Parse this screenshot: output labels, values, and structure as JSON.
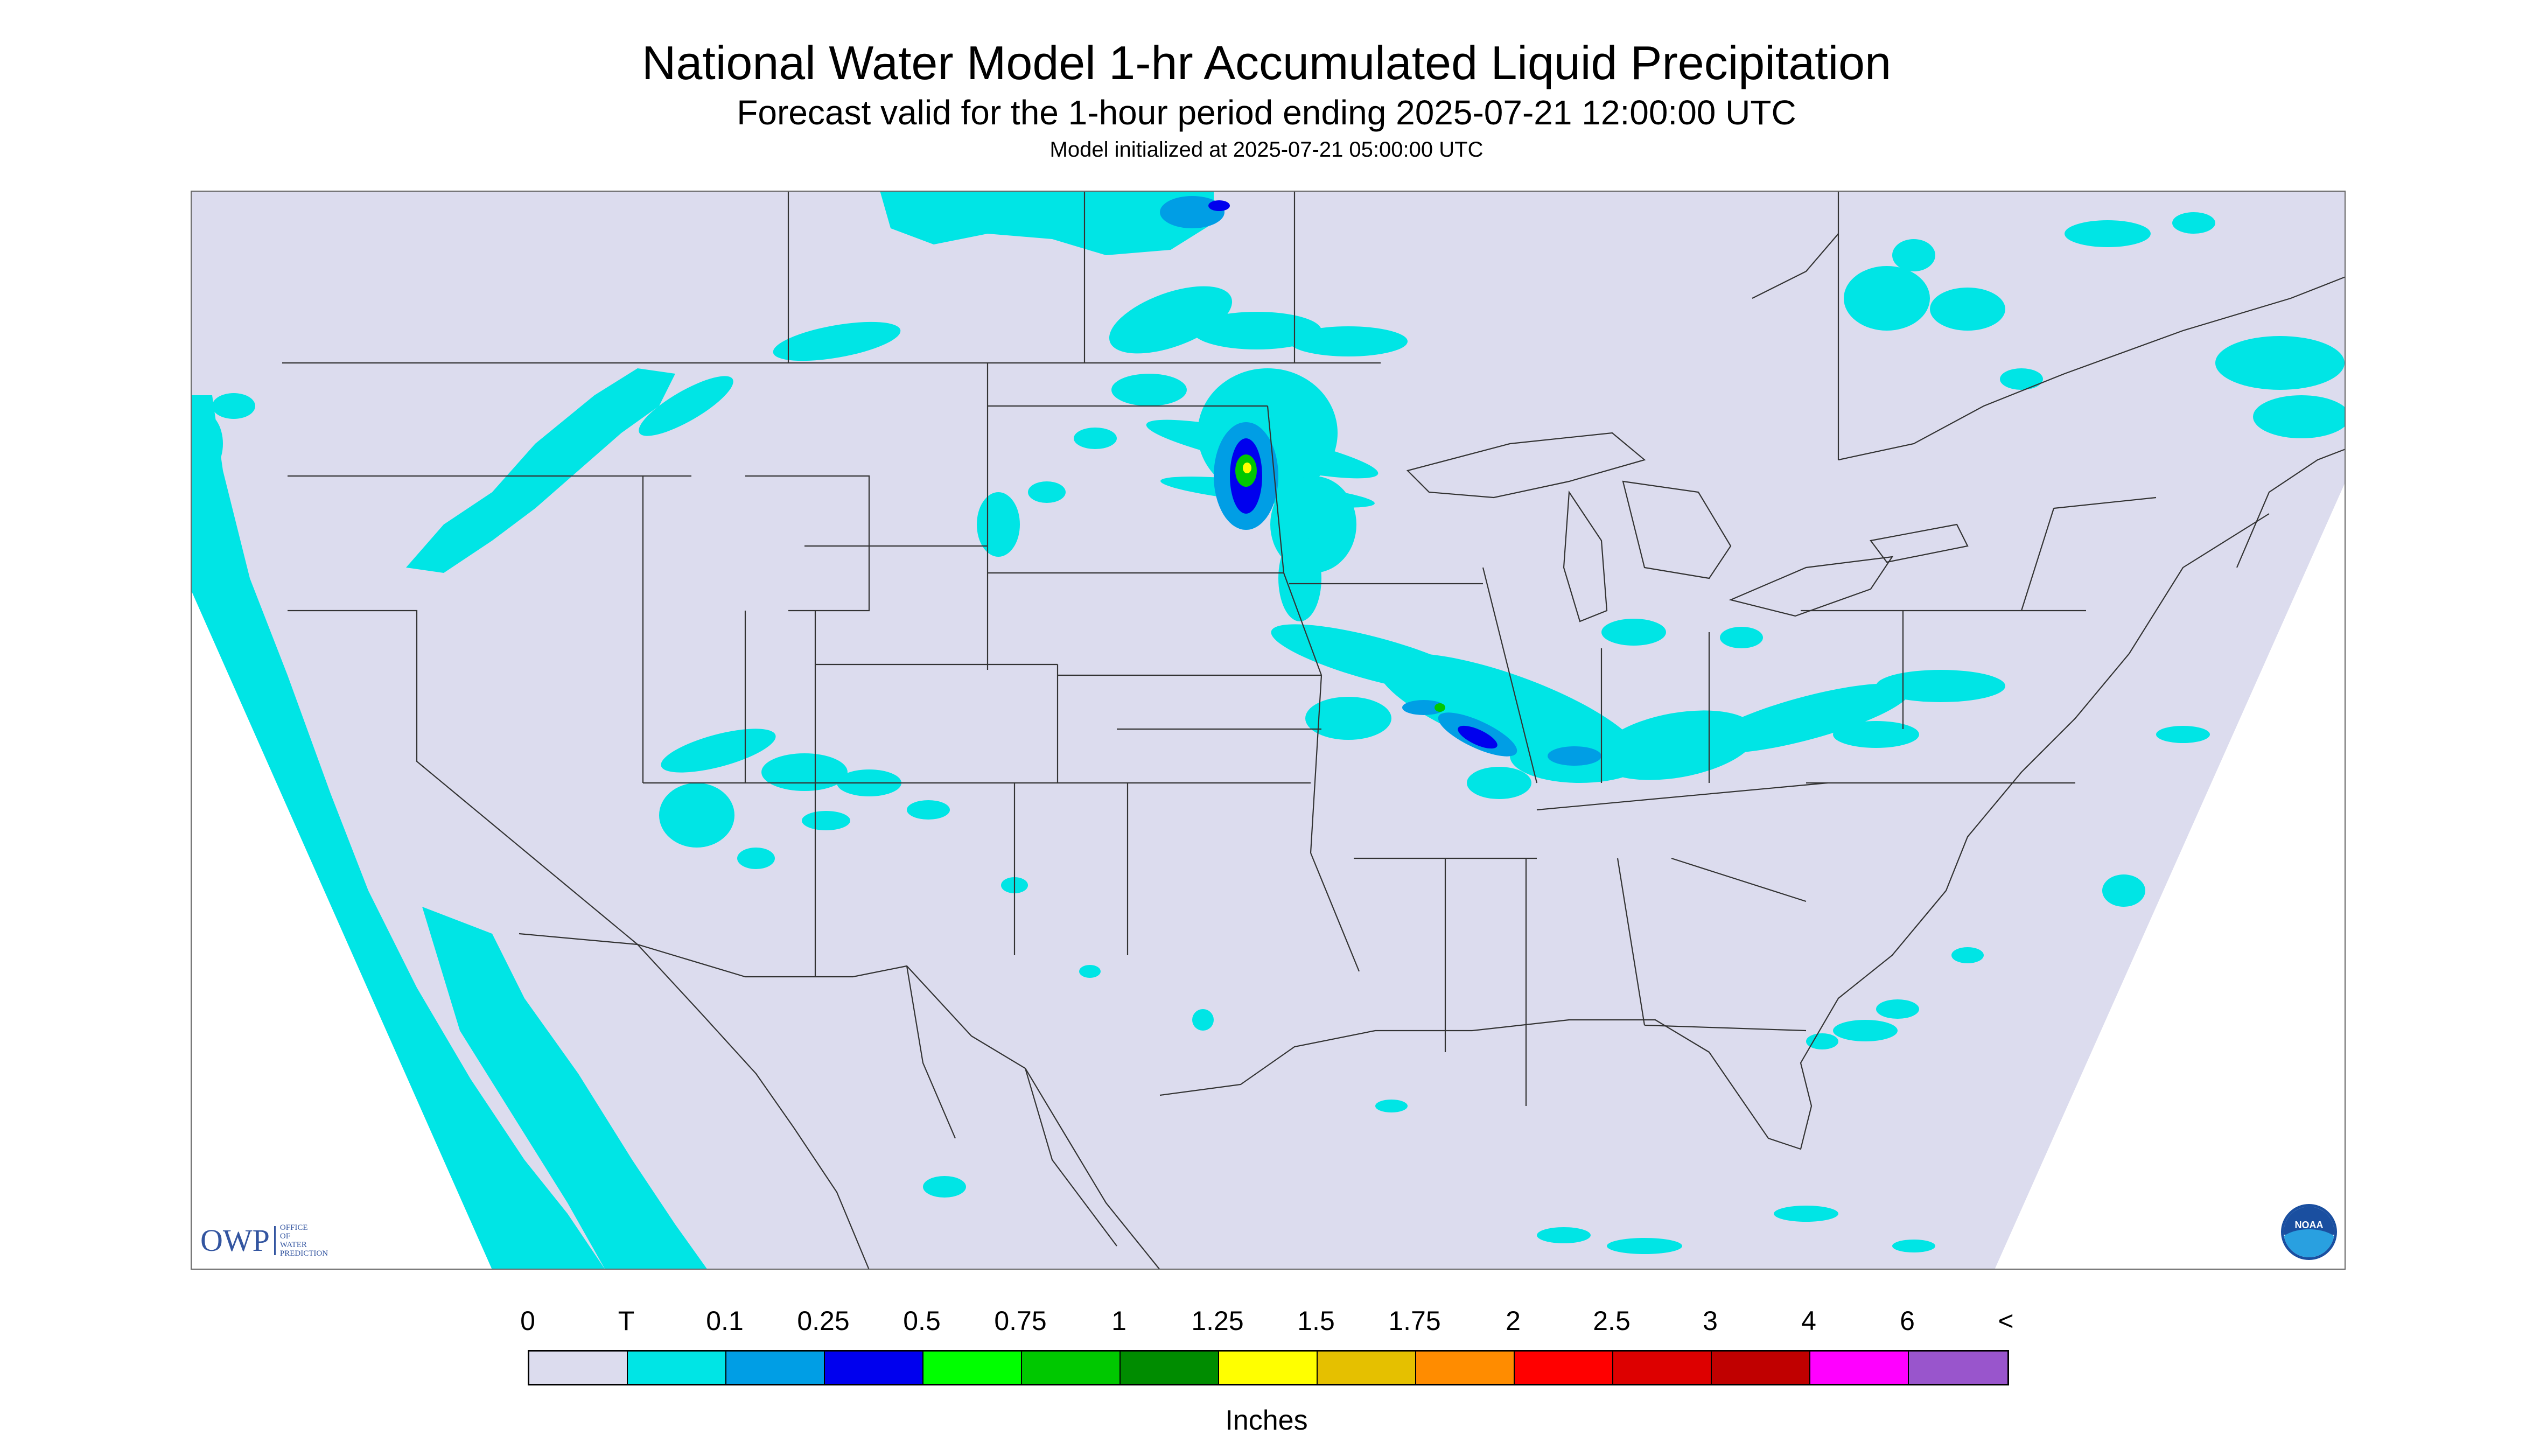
{
  "header": {
    "title": "National Water Model 1-hr Accumulated Liquid Precipitation",
    "subtitle": "Forecast valid for the 1-hour period ending 2025-07-21 12:00:00 UTC",
    "init_line": "Model initialized at 2025-07-21 05:00:00 UTC"
  },
  "logos": {
    "owp_text": "OWP",
    "owp_small": "OFFICE OF WATER PREDICTION",
    "noaa_text": "NOAA"
  },
  "legend": {
    "labels": [
      "0",
      "T",
      "0.1",
      "0.25",
      "0.5",
      "0.75",
      "1",
      "1.25",
      "1.5",
      "1.75",
      "2",
      "2.5",
      "3",
      "4",
      "6",
      "<"
    ],
    "colors": [
      "#dcdcee",
      "#00e5e5",
      "#009ee5",
      "#0000ee",
      "#00ff00",
      "#00c800",
      "#008c00",
      "#ffff00",
      "#e5c000",
      "#ff8c00",
      "#ff0000",
      "#dd0000",
      "#c00000",
      "#ff00ff",
      "#9955cc"
    ],
    "units": "Inches"
  },
  "colors": {
    "no_precip": "#dcdcee",
    "trace": "#00e5e5",
    "light": "#009ee5",
    "border": "#333333"
  }
}
